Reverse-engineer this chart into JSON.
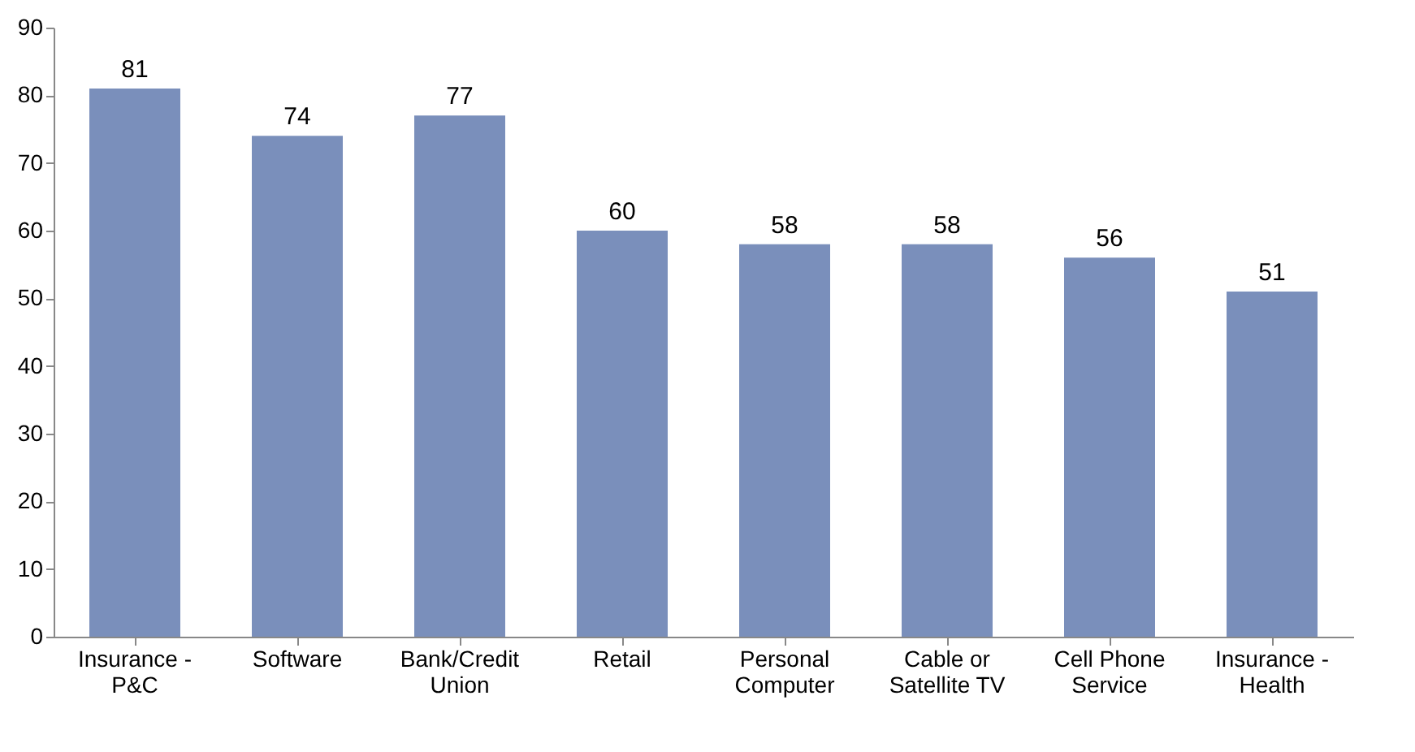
{
  "chart_data": {
    "type": "bar",
    "categories": [
      "Insurance -\nP&C",
      "Software",
      "Bank/Credit\nUnion",
      "Retail",
      "Personal\nComputer",
      "Cable or\nSatellite TV",
      "Cell Phone\nService",
      "Insurance -\nHealth"
    ],
    "values": [
      81,
      74,
      77,
      60,
      58,
      58,
      56,
      51
    ],
    "color": "#7a8fbb",
    "ylim": [
      0,
      90
    ],
    "yticks": [
      0,
      10,
      20,
      30,
      40,
      50,
      60,
      70,
      80,
      90
    ],
    "data_labels": true,
    "grid": false
  }
}
